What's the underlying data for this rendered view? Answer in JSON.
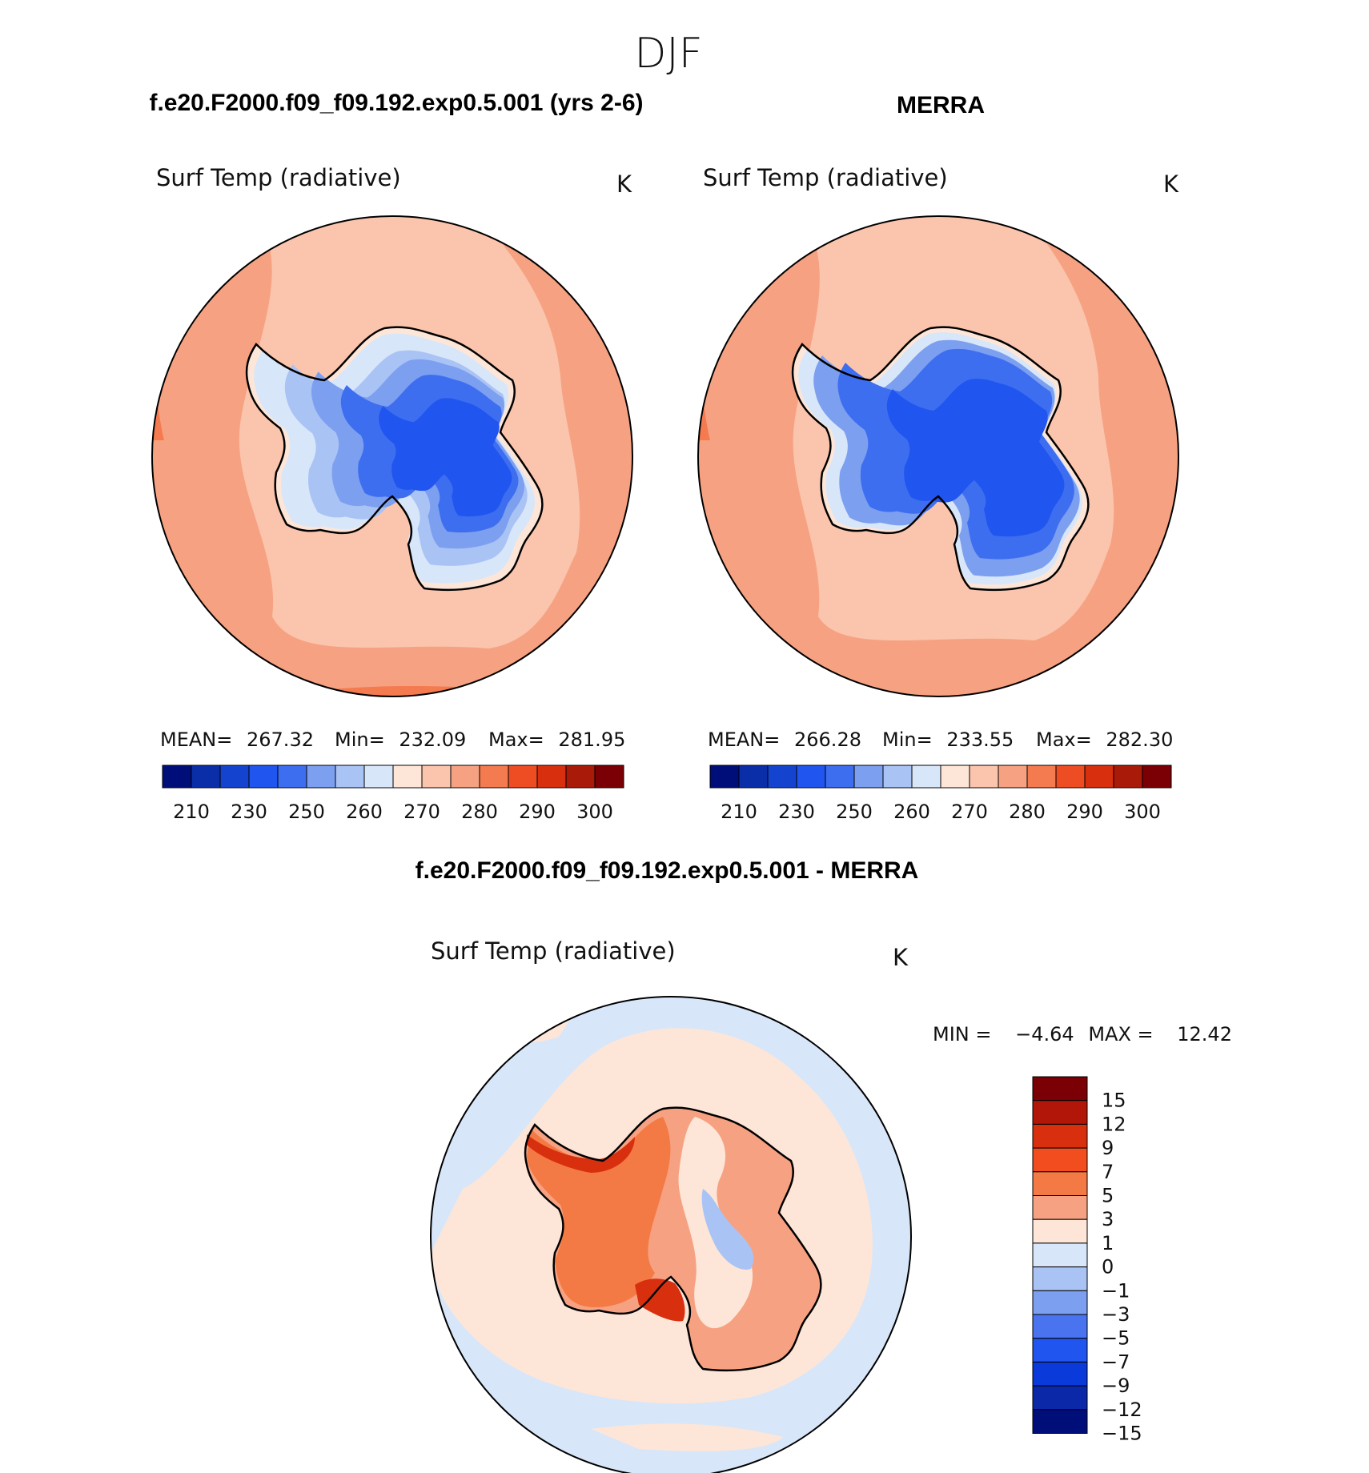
{
  "chart_data": [
    {
      "type": "heatmap",
      "projection": "south-polar-stereographic",
      "panel_title": "f.e20.F2000.f09_f09.192.exp0.5.001 (yrs 2-6)",
      "variable": "Surf Temp (radiative)",
      "units": "K",
      "stats": {
        "mean_label": "MEAN=",
        "mean": "267.32",
        "min_label": "Min=",
        "min": "232.09",
        "max_label": "Max=",
        "max": "281.95"
      },
      "colorbar_ticks": [
        "210",
        "230",
        "250",
        "260",
        "270",
        "280",
        "290",
        "300"
      ],
      "contour_levels": [
        210,
        220,
        230,
        240,
        250,
        255,
        260,
        265,
        270,
        275,
        280,
        285,
        290,
        295,
        300
      ]
    },
    {
      "type": "heatmap",
      "projection": "south-polar-stereographic",
      "panel_title": "MERRA",
      "variable": "Surf Temp (radiative)",
      "units": "K",
      "stats": {
        "mean_label": "MEAN=",
        "mean": "266.28",
        "min_label": "Min=",
        "min": "233.55",
        "max_label": "Max=",
        "max": "282.30"
      },
      "colorbar_ticks": [
        "210",
        "230",
        "250",
        "260",
        "270",
        "280",
        "290",
        "300"
      ],
      "contour_levels": [
        210,
        220,
        230,
        240,
        250,
        255,
        260,
        265,
        270,
        275,
        280,
        285,
        290,
        295,
        300
      ]
    },
    {
      "type": "heatmap",
      "projection": "south-polar-stereographic",
      "panel_title": "f.e20.F2000.f09_f09.192.exp0.5.001 - MERRA",
      "variable": "Surf Temp (radiative)",
      "units": "K",
      "stats": {
        "min_label": "MIN =",
        "min": "−4.64",
        "max_label": "MAX =",
        "max": "12.42"
      },
      "colorbar_ticks": [
        "15",
        "12",
        "9",
        "7",
        "5",
        "3",
        "1",
        "0",
        "−1",
        "−3",
        "−5",
        "−7",
        "−9",
        "−12",
        "−15"
      ]
    }
  ],
  "figure": {
    "season_title": "DJF"
  },
  "colors": {
    "abs_scale": [
      "#000e7a",
      "#0a2ea8",
      "#1444cf",
      "#2055f0",
      "#3e6ef0",
      "#7c9ff0",
      "#aac3f5",
      "#d8e6f9",
      "#fde6d8",
      "#fbc5ad",
      "#f6a282",
      "#f47a50",
      "#ee4d24",
      "#d8300f",
      "#aa1a08",
      "#7a0005"
    ],
    "diff_scale": [
      "#7a0005",
      "#b21608",
      "#d8300f",
      "#f24d1e",
      "#f47a45",
      "#f6a282",
      "#fde6d8",
      "#d8e6f9",
      "#aac3f5",
      "#7c9ff0",
      "#4a74ef",
      "#2055f0",
      "#0a3ad9",
      "#0a28a8",
      "#000e7a"
    ]
  }
}
